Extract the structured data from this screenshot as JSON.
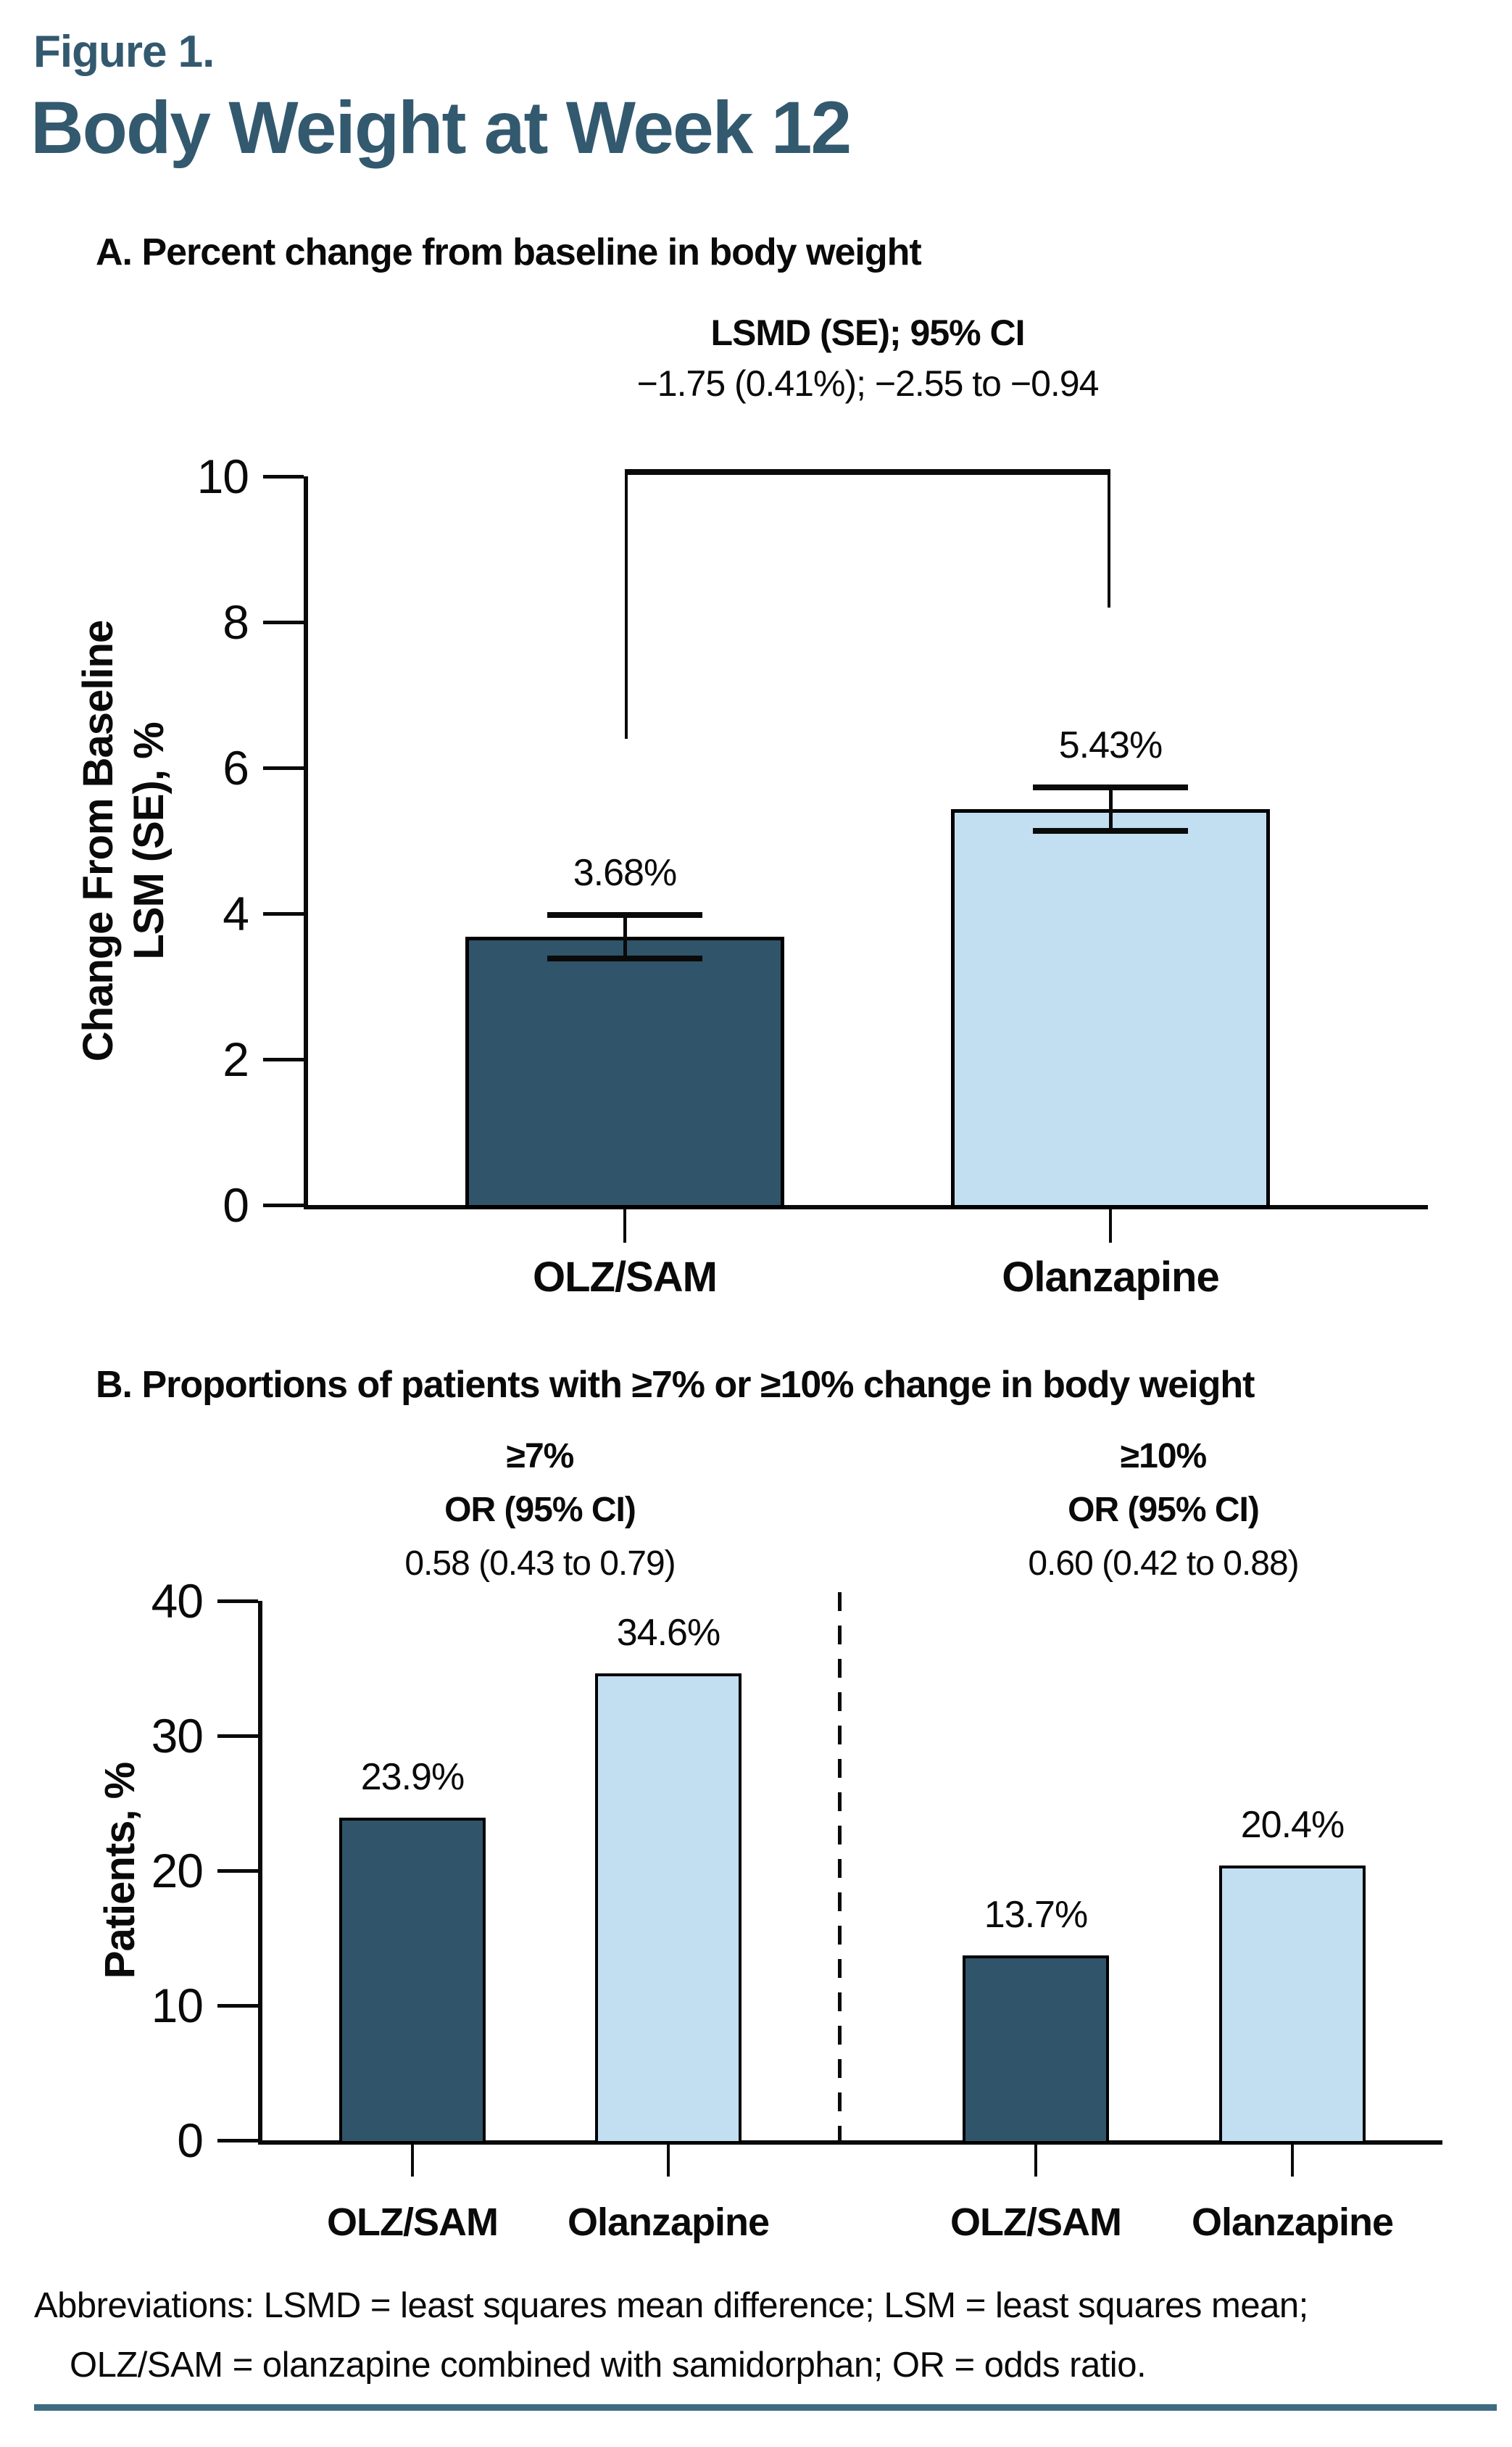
{
  "figure": {
    "label": "Figure 1.",
    "title": "Body Weight at Week 12"
  },
  "colors": {
    "title_teal": "#33596f",
    "dark_bar": "#305469",
    "light_bar": "#c2def1",
    "axis_black": "#0a0a0a",
    "bottom_rule": "#3e6b82"
  },
  "panel_a": {
    "header": "A. Percent change from baseline in body weight",
    "annotation_title": "LSMD (SE); 95% CI",
    "annotation_value": "−1.75 (0.41%); −2.55 to −0.94"
  },
  "panel_b": {
    "header": "B. Proportions of patients with ≥7% or ≥10% change in body weight",
    "annotations": [
      {
        "threshold": "≥7%",
        "or_label": "OR (95% CI)",
        "ci": "0.58 (0.43 to 0.79)"
      },
      {
        "threshold": "≥10%",
        "or_label": "OR (95% CI)",
        "ci": "0.60 (0.42 to 0.88)"
      }
    ]
  },
  "footnote": {
    "line1": "Abbreviations: LSMD = least squares mean difference; LSM = least squares mean;",
    "line2": "OLZ/SAM = olanzapine combined with samidorphan; OR = odds ratio."
  },
  "chart_data": [
    {
      "id": "A",
      "type": "bar",
      "title": "Percent change from baseline in body weight",
      "categories": [
        "OLZ/SAM",
        "Olanzapine"
      ],
      "values": [
        3.68,
        5.43
      ],
      "value_labels": [
        "3.68%",
        "5.43%"
      ],
      "error_se": [
        0.3,
        0.3
      ],
      "bar_colors": [
        "#305469",
        "#c2def1"
      ],
      "xlabel": "",
      "ylabel": "Change From Baseline\nLSM (SE), %",
      "ylim": [
        0,
        10
      ],
      "yticks": [
        0,
        2,
        4,
        6,
        8,
        10
      ],
      "grid": false,
      "legend": "none",
      "comparison_bracket": {
        "label": "LSMD (SE); 95% CI",
        "value": "−1.75 (0.41%); −2.55 to −0.94",
        "top_value": 10.1,
        "left_drop_to_value": 6.4,
        "right_drop_to_value": 8.2
      }
    },
    {
      "id": "B",
      "type": "bar",
      "title": "Proportions of patients with ≥7% or ≥10% change in body weight",
      "categories": [
        "OLZ/SAM",
        "Olanzapine",
        "OLZ/SAM",
        "Olanzapine"
      ],
      "values": [
        23.9,
        34.6,
        13.7,
        20.4
      ],
      "value_labels": [
        "23.9%",
        "34.6%",
        "13.7%",
        "20.4%"
      ],
      "bar_colors": [
        "#305469",
        "#c2def1",
        "#305469",
        "#c2def1"
      ],
      "groups": [
        {
          "threshold": "≥7%",
          "or": "0.58 (0.43 to 0.79)",
          "categories": [
            "OLZ/SAM",
            "Olanzapine"
          ],
          "values": [
            23.9,
            34.6
          ]
        },
        {
          "threshold": "≥10%",
          "or": "0.60 (0.42 to 0.88)",
          "categories": [
            "OLZ/SAM",
            "Olanzapine"
          ],
          "values": [
            13.7,
            20.4
          ]
        }
      ],
      "xlabel": "",
      "ylabel": "Patients, %",
      "ylim": [
        0,
        40
      ],
      "yticks": [
        0,
        10,
        20,
        30,
        40
      ],
      "grid": false,
      "legend": "none",
      "divider": "dashed vertical line between ≥7% and ≥10% groups"
    }
  ]
}
